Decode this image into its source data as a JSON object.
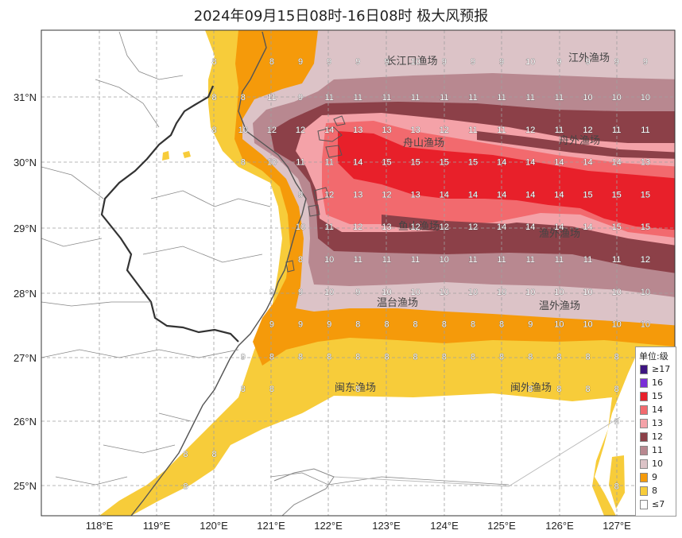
{
  "title": "2024年09月15日08时-16日08时 极大风预报",
  "axes": {
    "lat_ticks": [
      "31°N",
      "30°N",
      "29°N",
      "28°N",
      "27°N",
      "26°N",
      "25°N"
    ],
    "lon_ticks": [
      "118°E",
      "119°E",
      "120°E",
      "121°E",
      "122°E",
      "123°E",
      "124°E",
      "125°E",
      "126°E",
      "127°E"
    ]
  },
  "fishing_grounds": [
    "长江口渔场",
    "江外渔场",
    "舟山渔场",
    "舟外渔场",
    "鱼山渔场",
    "渔外渔场",
    "温台渔场",
    "温外渔场",
    "闽东渔场",
    "闽外渔场"
  ],
  "legend": {
    "title": "单位:级",
    "items": [
      {
        "label": "≥17",
        "color": "#3d1580"
      },
      {
        "label": "16",
        "color": "#7a2fd8"
      },
      {
        "label": "15",
        "color": "#e8202a"
      },
      {
        "label": "14",
        "color": "#f26a6e"
      },
      {
        "label": "13",
        "color": "#f4a2a8"
      },
      {
        "label": "12",
        "color": "#8c4048"
      },
      {
        "label": "11",
        "color": "#b88890"
      },
      {
        "label": "10",
        "color": "#dcc3c7"
      },
      {
        "label": "9",
        "color": "#f59a0a"
      },
      {
        "label": "8",
        "color": "#f7cc3a"
      },
      {
        "label": "≤7",
        "color": "#ffffff"
      }
    ]
  },
  "grid_values": [
    {
      "lat": 31.55,
      "lon": 120.0,
      "v": "8"
    },
    {
      "lat": 31.55,
      "lon": 121.0,
      "v": "8"
    },
    {
      "lat": 31.55,
      "lon": 121.5,
      "v": "9"
    },
    {
      "lat": 31.55,
      "lon": 122.0,
      "v": "9"
    },
    {
      "lat": 31.55,
      "lon": 122.5,
      "v": "9"
    },
    {
      "lat": 31.55,
      "lon": 123.0,
      "v": "9"
    },
    {
      "lat": 31.55,
      "lon": 123.5,
      "v": "10"
    },
    {
      "lat": 31.55,
      "lon": 124.0,
      "v": "9"
    },
    {
      "lat": 31.55,
      "lon": 124.5,
      "v": "9"
    },
    {
      "lat": 31.55,
      "lon": 125.0,
      "v": "9"
    },
    {
      "lat": 31.55,
      "lon": 125.5,
      "v": "10"
    },
    {
      "lat": 31.55,
      "lon": 126.0,
      "v": "9"
    },
    {
      "lat": 31.55,
      "lon": 126.5,
      "v": "9"
    },
    {
      "lat": 31.55,
      "lon": 127.0,
      "v": "9"
    },
    {
      "lat": 31.55,
      "lon": 127.5,
      "v": "9"
    },
    {
      "lat": 31.0,
      "lon": 120.0,
      "v": "8"
    },
    {
      "lat": 31.0,
      "lon": 120.5,
      "v": "8"
    },
    {
      "lat": 31.0,
      "lon": 121.0,
      "v": "11"
    },
    {
      "lat": 31.0,
      "lon": 121.5,
      "v": "9"
    },
    {
      "lat": 31.0,
      "lon": 122.0,
      "v": "11"
    },
    {
      "lat": 31.0,
      "lon": 122.5,
      "v": "11"
    },
    {
      "lat": 31.0,
      "lon": 123.0,
      "v": "11"
    },
    {
      "lat": 31.0,
      "lon": 123.5,
      "v": "11"
    },
    {
      "lat": 31.0,
      "lon": 124.0,
      "v": "11"
    },
    {
      "lat": 31.0,
      "lon": 124.5,
      "v": "11"
    },
    {
      "lat": 31.0,
      "lon": 125.0,
      "v": "11"
    },
    {
      "lat": 31.0,
      "lon": 125.5,
      "v": "11"
    },
    {
      "lat": 31.0,
      "lon": 126.0,
      "v": "11"
    },
    {
      "lat": 31.0,
      "lon": 126.5,
      "v": "10"
    },
    {
      "lat": 31.0,
      "lon": 127.0,
      "v": "10"
    },
    {
      "lat": 31.0,
      "lon": 127.5,
      "v": "10"
    },
    {
      "lat": 30.5,
      "lon": 120.0,
      "v": "8"
    },
    {
      "lat": 30.5,
      "lon": 120.5,
      "v": "10"
    },
    {
      "lat": 30.5,
      "lon": 121.0,
      "v": "12"
    },
    {
      "lat": 30.5,
      "lon": 121.5,
      "v": "12"
    },
    {
      "lat": 30.5,
      "lon": 122.0,
      "v": "14"
    },
    {
      "lat": 30.5,
      "lon": 122.5,
      "v": "13"
    },
    {
      "lat": 30.5,
      "lon": 123.0,
      "v": "13"
    },
    {
      "lat": 30.5,
      "lon": 123.5,
      "v": "13"
    },
    {
      "lat": 30.5,
      "lon": 124.0,
      "v": "12"
    },
    {
      "lat": 30.5,
      "lon": 124.5,
      "v": "11"
    },
    {
      "lat": 30.5,
      "lon": 125.0,
      "v": "11"
    },
    {
      "lat": 30.5,
      "lon": 125.5,
      "v": "12"
    },
    {
      "lat": 30.5,
      "lon": 126.0,
      "v": "11"
    },
    {
      "lat": 30.5,
      "lon": 126.5,
      "v": "12"
    },
    {
      "lat": 30.5,
      "lon": 127.0,
      "v": "11"
    },
    {
      "lat": 30.5,
      "lon": 127.5,
      "v": "11"
    },
    {
      "lat": 30.0,
      "lon": 120.5,
      "v": "8"
    },
    {
      "lat": 30.0,
      "lon": 121.0,
      "v": "10"
    },
    {
      "lat": 30.0,
      "lon": 121.5,
      "v": "11"
    },
    {
      "lat": 30.0,
      "lon": 122.0,
      "v": "11"
    },
    {
      "lat": 30.0,
      "lon": 122.5,
      "v": "14"
    },
    {
      "lat": 30.0,
      "lon": 123.0,
      "v": "15"
    },
    {
      "lat": 30.0,
      "lon": 123.5,
      "v": "15"
    },
    {
      "lat": 30.0,
      "lon": 124.0,
      "v": "15"
    },
    {
      "lat": 30.0,
      "lon": 124.5,
      "v": "15"
    },
    {
      "lat": 30.0,
      "lon": 125.0,
      "v": "14"
    },
    {
      "lat": 30.0,
      "lon": 125.5,
      "v": "14"
    },
    {
      "lat": 30.0,
      "lon": 126.0,
      "v": "14"
    },
    {
      "lat": 30.0,
      "lon": 126.5,
      "v": "14"
    },
    {
      "lat": 30.0,
      "lon": 127.0,
      "v": "14"
    },
    {
      "lat": 30.0,
      "lon": 127.5,
      "v": "13"
    },
    {
      "lat": 29.5,
      "lon": 121.5,
      "v": "9"
    },
    {
      "lat": 29.5,
      "lon": 122.0,
      "v": "12"
    },
    {
      "lat": 29.5,
      "lon": 122.5,
      "v": "13"
    },
    {
      "lat": 29.5,
      "lon": 123.0,
      "v": "12"
    },
    {
      "lat": 29.5,
      "lon": 123.5,
      "v": "13"
    },
    {
      "lat": 29.5,
      "lon": 124.0,
      "v": "14"
    },
    {
      "lat": 29.5,
      "lon": 124.5,
      "v": "14"
    },
    {
      "lat": 29.5,
      "lon": 125.0,
      "v": "14"
    },
    {
      "lat": 29.5,
      "lon": 125.5,
      "v": "14"
    },
    {
      "lat": 29.5,
      "lon": 126.0,
      "v": "14"
    },
    {
      "lat": 29.5,
      "lon": 126.5,
      "v": "15"
    },
    {
      "lat": 29.5,
      "lon": 127.0,
      "v": "15"
    },
    {
      "lat": 29.5,
      "lon": 127.5,
      "v": "15"
    },
    {
      "lat": 29.0,
      "lon": 121.5,
      "v": "10"
    },
    {
      "lat": 29.0,
      "lon": 122.0,
      "v": "11"
    },
    {
      "lat": 29.0,
      "lon": 122.5,
      "v": "12"
    },
    {
      "lat": 29.0,
      "lon": 123.0,
      "v": "13"
    },
    {
      "lat": 29.0,
      "lon": 123.5,
      "v": "12"
    },
    {
      "lat": 29.0,
      "lon": 124.0,
      "v": "12"
    },
    {
      "lat": 29.0,
      "lon": 124.5,
      "v": "12"
    },
    {
      "lat": 29.0,
      "lon": 125.0,
      "v": "14"
    },
    {
      "lat": 29.0,
      "lon": 125.5,
      "v": "14"
    },
    {
      "lat": 29.0,
      "lon": 126.0,
      "v": "14"
    },
    {
      "lat": 29.0,
      "lon": 126.5,
      "v": "14"
    },
    {
      "lat": 29.0,
      "lon": 127.0,
      "v": "15"
    },
    {
      "lat": 29.0,
      "lon": 127.5,
      "v": "15"
    },
    {
      "lat": 28.5,
      "lon": 121.5,
      "v": "8"
    },
    {
      "lat": 28.5,
      "lon": 122.0,
      "v": "10"
    },
    {
      "lat": 28.5,
      "lon": 122.5,
      "v": "11"
    },
    {
      "lat": 28.5,
      "lon": 123.0,
      "v": "11"
    },
    {
      "lat": 28.5,
      "lon": 123.5,
      "v": "11"
    },
    {
      "lat": 28.5,
      "lon": 124.0,
      "v": "10"
    },
    {
      "lat": 28.5,
      "lon": 124.5,
      "v": "11"
    },
    {
      "lat": 28.5,
      "lon": 125.0,
      "v": "11"
    },
    {
      "lat": 28.5,
      "lon": 125.5,
      "v": "11"
    },
    {
      "lat": 28.5,
      "lon": 126.0,
      "v": "11"
    },
    {
      "lat": 28.5,
      "lon": 126.5,
      "v": "11"
    },
    {
      "lat": 28.5,
      "lon": 127.0,
      "v": "11"
    },
    {
      "lat": 28.5,
      "lon": 127.5,
      "v": "12"
    },
    {
      "lat": 28.0,
      "lon": 121.0,
      "v": "9"
    },
    {
      "lat": 28.0,
      "lon": 121.5,
      "v": "9"
    },
    {
      "lat": 28.0,
      "lon": 122.0,
      "v": "10"
    },
    {
      "lat": 28.0,
      "lon": 122.5,
      "v": "9"
    },
    {
      "lat": 28.0,
      "lon": 123.0,
      "v": "10"
    },
    {
      "lat": 28.0,
      "lon": 123.5,
      "v": "10"
    },
    {
      "lat": 28.0,
      "lon": 124.0,
      "v": "10"
    },
    {
      "lat": 28.0,
      "lon": 124.5,
      "v": "10"
    },
    {
      "lat": 28.0,
      "lon": 125.0,
      "v": "10"
    },
    {
      "lat": 28.0,
      "lon": 125.5,
      "v": "10"
    },
    {
      "lat": 28.0,
      "lon": 126.0,
      "v": "10"
    },
    {
      "lat": 28.0,
      "lon": 126.5,
      "v": "10"
    },
    {
      "lat": 28.0,
      "lon": 127.0,
      "v": "10"
    },
    {
      "lat": 28.0,
      "lon": 127.5,
      "v": "10"
    },
    {
      "lat": 27.5,
      "lon": 121.0,
      "v": "9"
    },
    {
      "lat": 27.5,
      "lon": 121.5,
      "v": "9"
    },
    {
      "lat": 27.5,
      "lon": 122.0,
      "v": "9"
    },
    {
      "lat": 27.5,
      "lon": 122.5,
      "v": "8"
    },
    {
      "lat": 27.5,
      "lon": 123.0,
      "v": "8"
    },
    {
      "lat": 27.5,
      "lon": 123.5,
      "v": "8"
    },
    {
      "lat": 27.5,
      "lon": 124.0,
      "v": "8"
    },
    {
      "lat": 27.5,
      "lon": 124.5,
      "v": "8"
    },
    {
      "lat": 27.5,
      "lon": 125.0,
      "v": "8"
    },
    {
      "lat": 27.5,
      "lon": 125.5,
      "v": "9"
    },
    {
      "lat": 27.5,
      "lon": 126.0,
      "v": "10"
    },
    {
      "lat": 27.5,
      "lon": 126.5,
      "v": "10"
    },
    {
      "lat": 27.5,
      "lon": 127.0,
      "v": "10"
    },
    {
      "lat": 27.5,
      "lon": 127.5,
      "v": "10"
    },
    {
      "lat": 27.0,
      "lon": 120.5,
      "v": "9"
    },
    {
      "lat": 27.0,
      "lon": 121.0,
      "v": "8"
    },
    {
      "lat": 27.0,
      "lon": 121.5,
      "v": "8"
    },
    {
      "lat": 27.0,
      "lon": 122.0,
      "v": "8"
    },
    {
      "lat": 27.0,
      "lon": 122.5,
      "v": "8"
    },
    {
      "lat": 27.0,
      "lon": 123.0,
      "v": "8"
    },
    {
      "lat": 27.0,
      "lon": 123.5,
      "v": "8"
    },
    {
      "lat": 27.0,
      "lon": 124.0,
      "v": "8"
    },
    {
      "lat": 27.0,
      "lon": 124.5,
      "v": "8"
    },
    {
      "lat": 27.0,
      "lon": 125.0,
      "v": "8"
    },
    {
      "lat": 27.0,
      "lon": 125.5,
      "v": "8"
    },
    {
      "lat": 27.0,
      "lon": 126.0,
      "v": "8"
    },
    {
      "lat": 27.0,
      "lon": 126.5,
      "v": "8"
    },
    {
      "lat": 27.0,
      "lon": 127.0,
      "v": "8"
    },
    {
      "lat": 26.5,
      "lon": 120.5,
      "v": "8"
    },
    {
      "lat": 26.5,
      "lon": 121.0,
      "v": "8"
    },
    {
      "lat": 26.5,
      "lon": 122.5,
      "v": "8"
    },
    {
      "lat": 26.5,
      "lon": 125.5,
      "v": "8"
    },
    {
      "lat": 26.5,
      "lon": 126.0,
      "v": "8"
    },
    {
      "lat": 26.5,
      "lon": 126.5,
      "v": "8"
    },
    {
      "lat": 26.5,
      "lon": 127.0,
      "v": "8"
    },
    {
      "lat": 26.0,
      "lon": 127.0,
      "v": "8"
    },
    {
      "lat": 25.5,
      "lon": 119.5,
      "v": "8"
    },
    {
      "lat": 25.5,
      "lon": 120.0,
      "v": "8"
    },
    {
      "lat": 25.0,
      "lon": 119.5,
      "v": "8"
    },
    {
      "lat": 25.0,
      "lon": 127.0,
      "v": "8"
    }
  ]
}
